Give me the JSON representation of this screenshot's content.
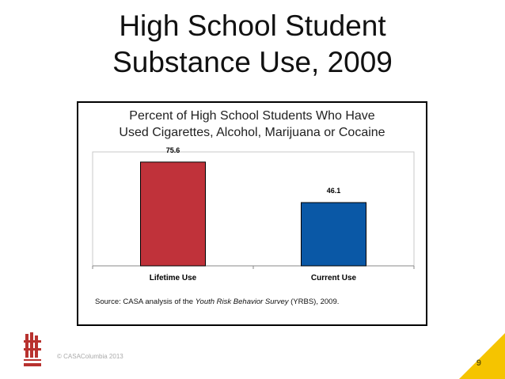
{
  "slide": {
    "title_line1": "High School Student",
    "title_line2": "Substance Use, 2009",
    "copyright": "© CASAColumbia 2013",
    "page_number": "9"
  },
  "chart": {
    "title_line1": "Percent of High School Students Who Have",
    "title_line2": "Used Cigarettes, Alcohol, Marijuana or Cocaine",
    "source_prefix": "Source: CASA analysis of the ",
    "source_italic": "Youth Risk Behavior Survey",
    "source_suffix": " (YRBS), 2009."
  },
  "colors": {
    "bar_lifetime": "#c0323a",
    "bar_current": "#0a58a6",
    "accent": "#f5c400",
    "logo": "#b8322f"
  },
  "chart_data": {
    "type": "bar",
    "title": "Percent of High School Students Who Have Used Cigarettes, Alcohol, Marijuana or Cocaine",
    "categories": [
      "Lifetime Use",
      "Current Use"
    ],
    "values": [
      75.6,
      46.1
    ],
    "value_labels": [
      "75.6",
      "46.1"
    ],
    "xlabel": "",
    "ylabel": "",
    "ylim": [
      0,
      100
    ],
    "grid": false,
    "legend": "none"
  }
}
